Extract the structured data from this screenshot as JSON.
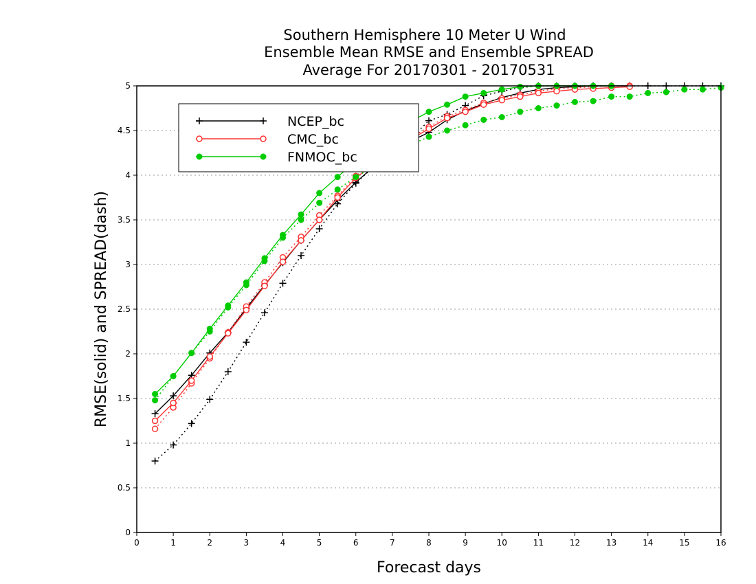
{
  "chart_data": {
    "type": "line",
    "title": [
      "Southern Hemisphere 10 Meter U Wind",
      "Ensemble Mean RMSE and Ensemble SPREAD",
      "Average For 20170301 - 20170531"
    ],
    "xlabel": "Forecast days",
    "ylabel": "RMSE(solid) and SPREAD(dash)",
    "xlim": [
      0,
      16
    ],
    "ylim": [
      0,
      5
    ],
    "xticks": [
      "0",
      "1",
      "2",
      "3",
      "4",
      "5",
      "6",
      "7",
      "8",
      "9",
      "10",
      "11",
      "12",
      "13",
      "14",
      "15",
      "16"
    ],
    "yticks": [
      "0",
      "0.5",
      "1",
      "1.5",
      "2",
      "2.5",
      "3",
      "3.5",
      "4",
      "4.5",
      "5"
    ],
    "grid": "horizontal dotted",
    "legend_position": "top-left",
    "series": [
      {
        "name": "NCEP_bc",
        "color": "#000000",
        "marker": "plus",
        "rmse": {
          "x": [
            0.5,
            1,
            1.5,
            2,
            2.5,
            3,
            3.5,
            4,
            4.5,
            5,
            5.5,
            6,
            6.5,
            7,
            7.5,
            8,
            8.5,
            9,
            9.5,
            10,
            10.5,
            11,
            11.5,
            12,
            12.5,
            13,
            13.5
          ],
          "y": [
            1.33,
            1.53,
            1.76,
            2.01,
            2.24,
            2.51,
            2.77,
            3.02,
            3.27,
            3.5,
            3.72,
            3.92,
            4.1,
            4.26,
            4.38,
            4.48,
            4.62,
            4.72,
            4.8,
            4.87,
            4.92,
            4.96,
            4.98,
            4.99,
            5.0,
            5.0,
            5.0
          ]
        },
        "spread": {
          "x": [
            0.5,
            1,
            1.5,
            2,
            2.5,
            3,
            3.5,
            4,
            4.5,
            5,
            5.5,
            6,
            6.5,
            7,
            7.5,
            8,
            8.5,
            9,
            9.5,
            10,
            10.5,
            11,
            11.5,
            12,
            12.5,
            13,
            13.5,
            14,
            14.5,
            15,
            15.5,
            16
          ],
          "y": [
            0.8,
            0.98,
            1.22,
            1.49,
            1.8,
            2.13,
            2.46,
            2.79,
            3.1,
            3.4,
            3.68,
            3.91,
            4.1,
            4.27,
            4.41,
            4.61,
            4.68,
            4.78,
            4.89,
            4.94,
            4.98,
            5.0,
            5.0,
            5.0,
            5.0,
            5.0,
            5.0,
            5.0,
            5.0,
            5.0,
            5.0,
            5.0
          ]
        }
      },
      {
        "name": "CMC_bc",
        "color": "#ff3333",
        "marker": "open-circle",
        "rmse": {
          "x": [
            0.5,
            1,
            1.5,
            2,
            2.5,
            3,
            3.5,
            4,
            4.5,
            5,
            5.5,
            6,
            6.5,
            7,
            7.5,
            8,
            8.5,
            9,
            9.5,
            10,
            10.5,
            11,
            11.5,
            12,
            12.5,
            13,
            13.5
          ],
          "y": [
            1.25,
            1.45,
            1.7,
            1.97,
            2.23,
            2.49,
            2.76,
            3.03,
            3.27,
            3.5,
            3.75,
            3.97,
            4.13,
            4.27,
            4.4,
            4.52,
            4.64,
            4.71,
            4.79,
            4.84,
            4.88,
            4.92,
            4.94,
            4.96,
            4.97,
            4.98,
            4.99
          ]
        },
        "spread": {
          "x": [
            0.5,
            1,
            1.5,
            2,
            2.5,
            3,
            3.5,
            4,
            4.5,
            5,
            5.5,
            6,
            6.5,
            7,
            7.5,
            8,
            8.5,
            9,
            9.5,
            10,
            10.5,
            11,
            11.5,
            12,
            12.5,
            13,
            13.5
          ],
          "y": [
            1.16,
            1.4,
            1.67,
            1.95,
            2.24,
            2.53,
            2.8,
            3.08,
            3.31,
            3.55,
            3.77,
            3.99,
            4.15,
            4.3,
            4.42,
            4.54,
            4.66,
            4.73,
            4.81,
            4.86,
            4.9,
            4.94,
            4.97,
            4.98,
            4.99,
            5.0,
            5.0
          ]
        }
      },
      {
        "name": "FNMOC_bc",
        "color": "#00cc00",
        "marker": "filled-circle",
        "rmse": {
          "x": [
            0.5,
            1,
            1.5,
            2,
            2.5,
            3,
            3.5,
            4,
            4.5,
            5,
            5.5,
            6,
            6.5,
            7,
            7.5,
            8,
            8.5,
            9,
            9.5,
            10,
            10.5,
            11,
            11.5,
            12,
            12.5,
            13
          ],
          "y": [
            1.55,
            1.75,
            2.01,
            2.28,
            2.54,
            2.8,
            3.07,
            3.33,
            3.56,
            3.8,
            3.98,
            4.16,
            4.31,
            4.46,
            4.6,
            4.71,
            4.79,
            4.88,
            4.92,
            4.96,
            4.99,
            5.0,
            5.0,
            5.0,
            5.0,
            5.0
          ]
        },
        "spread": {
          "x": [
            0.5,
            1,
            1.5,
            2,
            2.5,
            3,
            3.5,
            4,
            4.5,
            5,
            5.5,
            6,
            6.5,
            7,
            7.5,
            8,
            8.5,
            9,
            9.5,
            10,
            10.5,
            11,
            11.5,
            12,
            12.5,
            13,
            13.5,
            14,
            14.5,
            15,
            15.5,
            16
          ],
          "y": [
            1.48,
            1.75,
            2.01,
            2.25,
            2.52,
            2.77,
            3.04,
            3.3,
            3.5,
            3.69,
            3.84,
            3.98,
            4.1,
            4.21,
            4.34,
            4.43,
            4.5,
            4.56,
            4.62,
            4.65,
            4.71,
            4.75,
            4.78,
            4.82,
            4.83,
            4.88,
            4.88,
            4.92,
            4.93,
            4.96,
            4.96,
            4.98
          ]
        }
      }
    ]
  }
}
